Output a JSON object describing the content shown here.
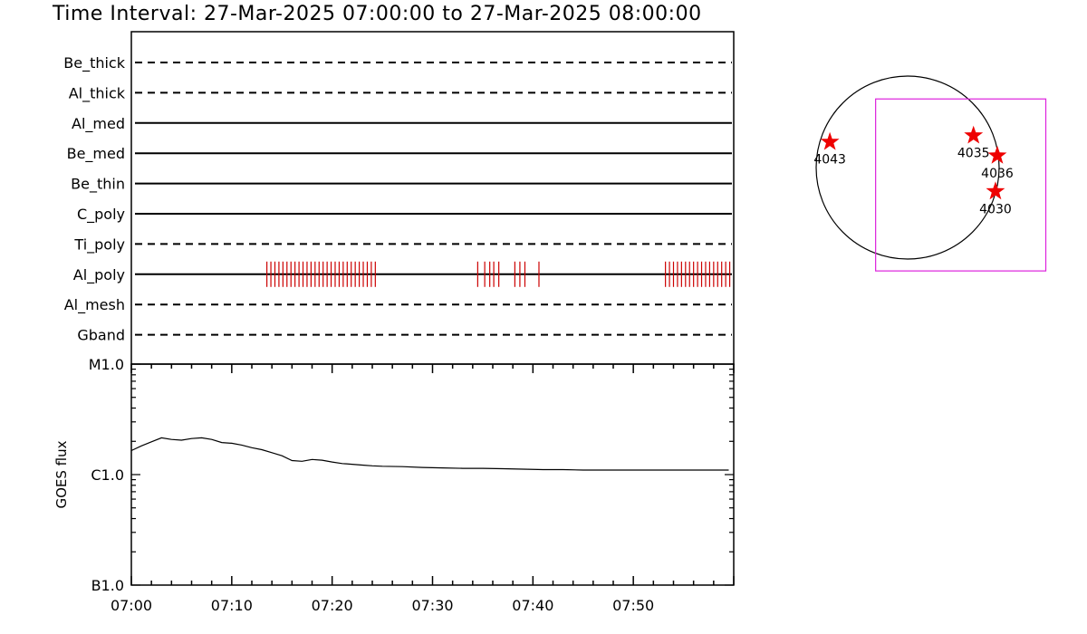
{
  "title": "Time Interval: 27-Mar-2025 07:00:00 to 27-Mar-2025 08:00:00",
  "colors": {
    "axis": "#000000",
    "exposure_ticks": "#cc0000",
    "fov_box": "#dd22dd",
    "markers": "#ee0000",
    "background": "#ffffff"
  },
  "chart_data": [
    {
      "type": "line",
      "name": "filter-exposure-timeline",
      "x_range": [
        "07:00",
        "08:00"
      ],
      "filters": [
        {
          "label": "Be_thick",
          "style": "dashed"
        },
        {
          "label": "Al_thick",
          "style": "dashed"
        },
        {
          "label": "Al_med",
          "style": "solid"
        },
        {
          "label": "Be_med",
          "style": "solid"
        },
        {
          "label": "Be_thin",
          "style": "solid"
        },
        {
          "label": "C_poly",
          "style": "solid"
        },
        {
          "label": "Ti_poly",
          "style": "dashed"
        },
        {
          "label": "Al_poly",
          "style": "solid"
        },
        {
          "label": "Al_mesh",
          "style": "dashed"
        },
        {
          "label": "Gband",
          "style": "dashed"
        }
      ],
      "exposures": {
        "filter": "Al_poly",
        "times_min": [
          13.5,
          13.9,
          14.3,
          14.7,
          15.1,
          15.5,
          15.9,
          16.3,
          16.7,
          17.1,
          17.5,
          17.9,
          18.3,
          18.7,
          19.1,
          19.5,
          19.9,
          20.3,
          20.7,
          21.1,
          21.5,
          21.9,
          22.3,
          22.7,
          23.1,
          23.5,
          23.9,
          24.3,
          34.5,
          35.2,
          35.7,
          36.1,
          36.6,
          38.2,
          38.7,
          39.2,
          40.6,
          53.2,
          53.6,
          54.0,
          54.4,
          54.8,
          55.2,
          55.6,
          56.0,
          56.4,
          56.8,
          57.2,
          57.6,
          58.0,
          58.4,
          58.8,
          59.2,
          59.6
        ]
      }
    },
    {
      "type": "line",
      "name": "goes-flux",
      "ylabel": "GOES flux",
      "yscale": "log",
      "yticks": [
        "M1.0",
        "C1.0",
        "B1.0"
      ],
      "ylim_decades": [
        -7,
        -5
      ],
      "xticks": [
        "07:00",
        "07:10",
        "07:20",
        "07:30",
        "07:40",
        "07:50"
      ],
      "x_min": [
        0,
        1,
        2,
        3,
        4,
        5,
        6,
        7,
        8,
        9,
        10,
        11,
        12,
        13,
        14,
        15,
        16,
        17,
        18,
        19,
        20,
        21,
        22,
        23,
        24,
        25,
        27,
        29,
        31,
        33,
        35,
        37,
        39,
        41,
        43,
        45,
        47,
        49,
        51,
        53,
        55,
        57,
        59.5
      ],
      "y_flux": [
        1.65e-06,
        1.82e-06,
        1.98e-06,
        2.15e-06,
        2.08e-06,
        2.05e-06,
        2.12e-06,
        2.15e-06,
        2.08e-06,
        1.95e-06,
        1.92e-06,
        1.85e-06,
        1.75e-06,
        1.68e-06,
        1.58e-06,
        1.48e-06,
        1.34e-06,
        1.32e-06,
        1.37e-06,
        1.35e-06,
        1.3e-06,
        1.26e-06,
        1.24e-06,
        1.22e-06,
        1.2e-06,
        1.19e-06,
        1.18e-06,
        1.16e-06,
        1.15e-06,
        1.14e-06,
        1.14e-06,
        1.13e-06,
        1.12e-06,
        1.11e-06,
        1.11e-06,
        1.1e-06,
        1.1e-06,
        1.1e-06,
        1.1e-06,
        1.1e-06,
        1.1e-06,
        1.1e-06,
        1.1e-06
      ]
    },
    {
      "type": "scatter",
      "name": "active-region-map",
      "regions": [
        {
          "id": "4043",
          "x": -0.85,
          "y": 0.28
        },
        {
          "id": "4035",
          "x": 0.72,
          "y": 0.35
        },
        {
          "id": "4036",
          "x": 0.98,
          "y": 0.13
        },
        {
          "id": "4030",
          "x": 0.96,
          "y": -0.26
        }
      ],
      "fov": {
        "x": [
          -0.35,
          1.51
        ],
        "y": [
          -1.13,
          0.75
        ]
      }
    }
  ]
}
